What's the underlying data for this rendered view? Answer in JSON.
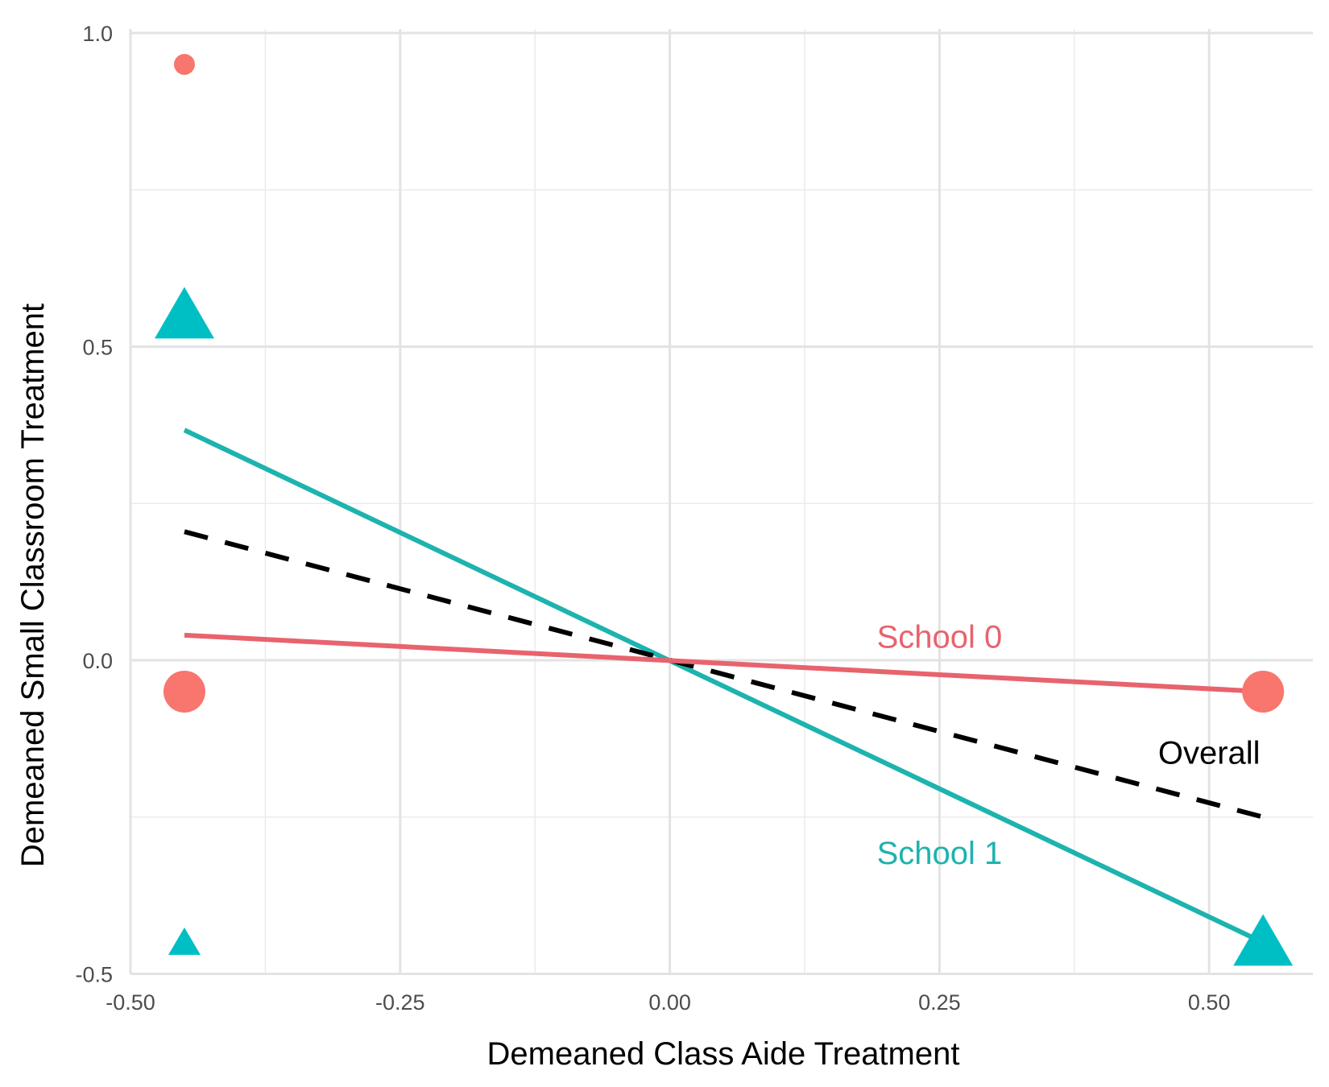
{
  "chart_data": {
    "type": "scatter",
    "title": "",
    "xlabel": "Demeaned Class Aide Treatment",
    "ylabel": "Demeaned Small Classroom Treatment",
    "xlim": [
      -0.5,
      0.55
    ],
    "ylim": [
      -0.5,
      1.0
    ],
    "x_ticks": [
      -0.5,
      -0.25,
      0.0,
      0.25,
      0.5
    ],
    "x_tick_labels": [
      "-0.50",
      "-0.25",
      "0.00",
      "0.25",
      "0.50"
    ],
    "y_ticks": [
      -0.5,
      0.0,
      0.5,
      1.0
    ],
    "y_tick_labels": [
      "-0.5",
      "0.0",
      "0.5",
      "1.0"
    ],
    "grid": true,
    "legend": "none",
    "colors": {
      "school0": "#F8766D",
      "school1": "#00BFC4",
      "overall": "#000000"
    },
    "points": [
      {
        "series": "School 0",
        "shape": "circle",
        "x": -0.45,
        "y": 0.95,
        "size": "small"
      },
      {
        "series": "School 0",
        "shape": "circle",
        "x": -0.45,
        "y": -0.05,
        "size": "large"
      },
      {
        "series": "School 0",
        "shape": "circle",
        "x": 0.55,
        "y": -0.05,
        "size": "large"
      },
      {
        "series": "School 1",
        "shape": "triangle",
        "x": -0.45,
        "y": 0.55,
        "size": "large"
      },
      {
        "series": "School 1",
        "shape": "triangle",
        "x": -0.45,
        "y": -0.45,
        "size": "small"
      },
      {
        "series": "School 1",
        "shape": "triangle",
        "x": 0.55,
        "y": -0.45,
        "size": "large"
      }
    ],
    "lines": [
      {
        "name": "School 1",
        "style": "solid",
        "color": "#1DB3AE",
        "x": [
          -0.45,
          0.55
        ],
        "y": [
          0.367,
          -0.45
        ]
      },
      {
        "name": "Overall",
        "style": "dashed",
        "color": "#000000",
        "x": [
          -0.45,
          0.55
        ],
        "y": [
          0.205,
          -0.25
        ]
      },
      {
        "name": "School 0",
        "style": "solid",
        "color": "#E8636E",
        "x": [
          -0.45,
          0.55
        ],
        "y": [
          0.04,
          -0.05
        ]
      }
    ],
    "annotations": [
      {
        "text": "School 0",
        "x": 0.25,
        "y": 0.02,
        "color": "#E8636E"
      },
      {
        "text": "Overall",
        "x": 0.5,
        "y": -0.165,
        "color": "#000000"
      },
      {
        "text": "School 1",
        "x": 0.25,
        "y": -0.325,
        "color": "#1DB3AE"
      }
    ]
  }
}
